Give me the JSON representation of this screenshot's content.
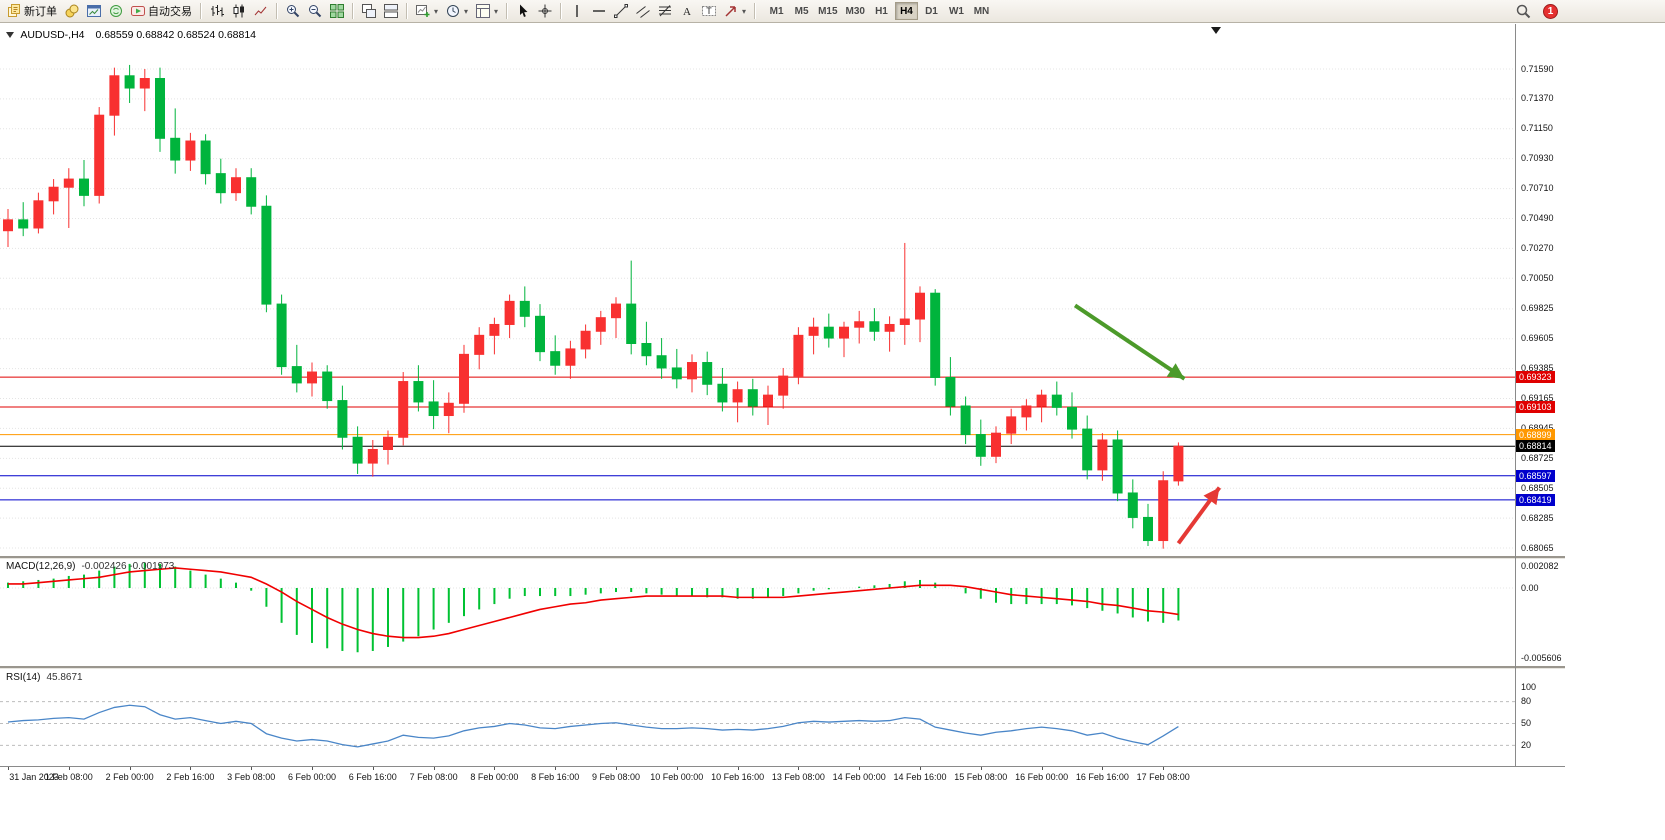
{
  "toolbar": {
    "items": [
      {
        "type": "button",
        "name": "new-order",
        "icon": "new-order-icon",
        "label": "新订单"
      },
      {
        "type": "button",
        "name": "market-watch",
        "icon": "market-watch-icon"
      },
      {
        "type": "button",
        "name": "terminal-window",
        "icon": "terminal-window-icon"
      },
      {
        "type": "button",
        "name": "mql5-community",
        "icon": "mql5-community-icon"
      },
      {
        "type": "button",
        "name": "auto-trading",
        "icon": "auto-trading-icon",
        "label": "自动交易"
      },
      {
        "type": "sep"
      },
      {
        "type": "button",
        "name": "bar-chart-mode",
        "icon": "bar-chart-icon"
      },
      {
        "type": "button",
        "name": "candlestick-mode",
        "icon": "candlestick-icon"
      },
      {
        "type": "button",
        "name": "line-chart-mode",
        "icon": "line-chart-icon"
      },
      {
        "type": "sep"
      },
      {
        "type": "button",
        "name": "zoom-in",
        "icon": "zoom-in-icon"
      },
      {
        "type": "button",
        "name": "zoom-out",
        "icon": "zoom-out-icon"
      },
      {
        "type": "button",
        "name": "tile-windows",
        "icon": "tile-windows-icon"
      },
      {
        "type": "sep"
      },
      {
        "type": "button",
        "name": "cascade-windows",
        "icon": "cascade-windows-icon"
      },
      {
        "type": "button",
        "name": "tile-horizontal",
        "icon": "tile-horizontal-icon"
      },
      {
        "type": "sep"
      },
      {
        "type": "button",
        "name": "new-chart",
        "icon": "new-chart-icon",
        "dropdown": true
      },
      {
        "type": "button",
        "name": "periods",
        "icon": "periods-icon",
        "dropdown": true
      },
      {
        "type": "button",
        "name": "templates",
        "icon": "templates-icon",
        "dropdown": true
      },
      {
        "type": "sep"
      },
      {
        "type": "button",
        "name": "cursor-tool",
        "icon": "cursor-icon"
      },
      {
        "type": "button",
        "name": "crosshair-tool",
        "icon": "crosshair-icon"
      },
      {
        "type": "sep"
      },
      {
        "type": "button",
        "name": "vertical-line-tool",
        "icon": "vertical-line-icon"
      },
      {
        "type": "button",
        "name": "horizontal-line-tool",
        "icon": "horizontal-line-icon"
      },
      {
        "type": "button",
        "name": "trendline-tool",
        "icon": "trendline-icon"
      },
      {
        "type": "button",
        "name": "channel-tool",
        "icon": "channel-icon"
      },
      {
        "type": "button",
        "name": "fibonacci-tool",
        "icon": "fibonacci-icon"
      },
      {
        "type": "button",
        "name": "text-tool",
        "icon": "text-icon"
      },
      {
        "type": "button",
        "name": "label-tool",
        "icon": "label-icon"
      },
      {
        "type": "button",
        "name": "arrows-tool",
        "icon": "arrows-icon",
        "dropdown": true
      },
      {
        "type": "sep"
      }
    ],
    "timeframes": {
      "labels": [
        "M1",
        "M5",
        "M15",
        "M30",
        "H1",
        "H4",
        "D1",
        "W1",
        "MN"
      ],
      "active": "H4"
    },
    "notification_count": "1"
  },
  "chart_data": [
    {
      "type": "candlestick",
      "symbol_title": "AUDUSD-,H4",
      "ohlc_display": "0.68559 0.68842 0.68524 0.68814",
      "current": {
        "open": 0.68559,
        "high": 0.68842,
        "low": 0.68524,
        "close": 0.68814
      },
      "up_color": "#f83030",
      "down_color": "#00b43c",
      "ylim": [
        0.6799,
        0.7192
      ],
      "y_ticks": [
        "0.71590",
        "0.71370",
        "0.71150",
        "0.70930",
        "0.70710",
        "0.70490",
        "0.70270",
        "0.70050",
        "0.69825",
        "0.69605",
        "0.69385",
        "0.69165",
        "0.68945",
        "0.68725",
        "0.68505",
        "0.68285",
        "0.68065"
      ],
      "x_label_step": 4,
      "x_labels": [
        "31 Jan 2023",
        "1 Feb 08:00",
        "2 Feb 00:00",
        "2 Feb 16:00",
        "3 Feb 08:00",
        "6 Feb 00:00",
        "6 Feb 16:00",
        "7 Feb 08:00",
        "8 Feb 00:00",
        "8 Feb 16:00",
        "9 Feb 08:00",
        "10 Feb 00:00",
        "10 Feb 16:00",
        "13 Feb 08:00",
        "14 Feb 00:00",
        "14 Feb 16:00",
        "15 Feb 08:00",
        "16 Feb 00:00",
        "16 Feb 16:00",
        "17 Feb 08:00"
      ],
      "candles": [
        [
          0.704,
          0.7056,
          0.7028,
          0.7048
        ],
        [
          0.7048,
          0.7061,
          0.7036,
          0.7042
        ],
        [
          0.7042,
          0.7068,
          0.7038,
          0.7062
        ],
        [
          0.7062,
          0.7078,
          0.7052,
          0.7072
        ],
        [
          0.7072,
          0.7086,
          0.7042,
          0.7078
        ],
        [
          0.7078,
          0.7092,
          0.7058,
          0.7066
        ],
        [
          0.7066,
          0.7131,
          0.706,
          0.7125
        ],
        [
          0.7125,
          0.716,
          0.711,
          0.7154
        ],
        [
          0.7154,
          0.7162,
          0.7134,
          0.7145
        ],
        [
          0.7145,
          0.7159,
          0.7128,
          0.7152
        ],
        [
          0.7152,
          0.716,
          0.7098,
          0.7108
        ],
        [
          0.7108,
          0.713,
          0.7082,
          0.7092
        ],
        [
          0.7092,
          0.7112,
          0.7084,
          0.7106
        ],
        [
          0.7106,
          0.7111,
          0.7074,
          0.7082
        ],
        [
          0.7082,
          0.7093,
          0.706,
          0.7068
        ],
        [
          0.7068,
          0.7086,
          0.7062,
          0.7079
        ],
        [
          0.7079,
          0.7086,
          0.7052,
          0.7058
        ],
        [
          0.7058,
          0.7066,
          0.698,
          0.6986
        ],
        [
          0.6986,
          0.6993,
          0.6934,
          0.694
        ],
        [
          0.694,
          0.6956,
          0.6921,
          0.6928
        ],
        [
          0.6928,
          0.6943,
          0.6918,
          0.6936
        ],
        [
          0.6936,
          0.6941,
          0.6909,
          0.6915
        ],
        [
          0.6915,
          0.6926,
          0.6879,
          0.6888
        ],
        [
          0.6888,
          0.6896,
          0.6861,
          0.6869
        ],
        [
          0.6869,
          0.6886,
          0.6859,
          0.6879
        ],
        [
          0.6879,
          0.6893,
          0.6868,
          0.6888
        ],
        [
          0.6888,
          0.6936,
          0.6882,
          0.6929
        ],
        [
          0.6929,
          0.6941,
          0.6907,
          0.6914
        ],
        [
          0.6914,
          0.693,
          0.6894,
          0.6904
        ],
        [
          0.6904,
          0.6921,
          0.6891,
          0.6913
        ],
        [
          0.6913,
          0.6956,
          0.6906,
          0.6949
        ],
        [
          0.6949,
          0.6969,
          0.6938,
          0.6963
        ],
        [
          0.6963,
          0.6976,
          0.6949,
          0.6971
        ],
        [
          0.6971,
          0.6993,
          0.6961,
          0.6988
        ],
        [
          0.6988,
          0.6999,
          0.6969,
          0.6977
        ],
        [
          0.6977,
          0.6986,
          0.6944,
          0.6951
        ],
        [
          0.6951,
          0.6963,
          0.6934,
          0.6941
        ],
        [
          0.6941,
          0.6959,
          0.6931,
          0.6953
        ],
        [
          0.6953,
          0.6971,
          0.6946,
          0.6966
        ],
        [
          0.6966,
          0.6981,
          0.6956,
          0.6976
        ],
        [
          0.6976,
          0.6991,
          0.6961,
          0.6986
        ],
        [
          0.6986,
          0.7018,
          0.6949,
          0.6957
        ],
        [
          0.6957,
          0.6973,
          0.6941,
          0.6948
        ],
        [
          0.6948,
          0.6961,
          0.6931,
          0.6939
        ],
        [
          0.6939,
          0.6953,
          0.6924,
          0.6931
        ],
        [
          0.6931,
          0.6949,
          0.6921,
          0.6943
        ],
        [
          0.6943,
          0.6951,
          0.6919,
          0.6927
        ],
        [
          0.6927,
          0.6939,
          0.6907,
          0.6914
        ],
        [
          0.6914,
          0.6929,
          0.6899,
          0.6923
        ],
        [
          0.6923,
          0.6931,
          0.6904,
          0.6911
        ],
        [
          0.6911,
          0.6926,
          0.6897,
          0.6919
        ],
        [
          0.6919,
          0.6939,
          0.6909,
          0.6933
        ],
        [
          0.6933,
          0.6969,
          0.6927,
          0.6963
        ],
        [
          0.6963,
          0.6976,
          0.6949,
          0.6969
        ],
        [
          0.6969,
          0.6979,
          0.6954,
          0.6961
        ],
        [
          0.6961,
          0.6973,
          0.6947,
          0.6969
        ],
        [
          0.6969,
          0.6981,
          0.6957,
          0.6973
        ],
        [
          0.6973,
          0.6983,
          0.6959,
          0.6966
        ],
        [
          0.6966,
          0.6977,
          0.6951,
          0.6971
        ],
        [
          0.6971,
          0.7031,
          0.6956,
          0.6975
        ],
        [
          0.6975,
          0.6999,
          0.6958,
          0.6994
        ],
        [
          0.6994,
          0.6997,
          0.6926,
          0.6932
        ],
        [
          0.6932,
          0.6947,
          0.6904,
          0.6911
        ],
        [
          0.6911,
          0.6918,
          0.6883,
          0.689
        ],
        [
          0.689,
          0.6901,
          0.6867,
          0.6874
        ],
        [
          0.6874,
          0.6896,
          0.6869,
          0.6891
        ],
        [
          0.6891,
          0.6909,
          0.6883,
          0.6903
        ],
        [
          0.6903,
          0.6916,
          0.6893,
          0.6911
        ],
        [
          0.6911,
          0.6923,
          0.6899,
          0.6919
        ],
        [
          0.6919,
          0.6929,
          0.6904,
          0.691
        ],
        [
          0.691,
          0.6921,
          0.6887,
          0.6894
        ],
        [
          0.6894,
          0.6904,
          0.6857,
          0.6864
        ],
        [
          0.6864,
          0.6891,
          0.6856,
          0.6886
        ],
        [
          0.6886,
          0.6893,
          0.6841,
          0.6847
        ],
        [
          0.6847,
          0.6857,
          0.6821,
          0.6829
        ],
        [
          0.6829,
          0.6839,
          0.6808,
          0.6812
        ],
        [
          0.6812,
          0.6863,
          0.6806,
          0.6856
        ],
        [
          0.68559,
          0.68842,
          0.68524,
          0.68814
        ]
      ],
      "hlines": [
        {
          "price": 0.69323,
          "color": "#e00000",
          "label": "0.69323"
        },
        {
          "price": 0.69103,
          "color": "#e00000",
          "label": "0.69103"
        },
        {
          "price": 0.68899,
          "color": "#ff9800",
          "label": "0.68899"
        },
        {
          "price": 0.68814,
          "color": "#000000",
          "label": "0.68814",
          "role": "current-price"
        },
        {
          "price": 0.68597,
          "color": "#0000cc",
          "label": "0.68597"
        },
        {
          "price": 0.68419,
          "color": "#0000cc",
          "label": "0.68419"
        }
      ],
      "arrows": [
        {
          "name": "trend-down-arrow",
          "color": "#4c9a2a",
          "from": {
            "bar": 70.2,
            "price": 0.6985
          },
          "to": {
            "bar": 77.4,
            "price": 0.6931
          }
        },
        {
          "name": "reversal-up-arrow",
          "color": "#e53935",
          "from": {
            "bar": 77.0,
            "price": 0.681
          },
          "to": {
            "bar": 79.7,
            "price": 0.6851
          }
        }
      ]
    },
    {
      "type": "bar",
      "name": "MACD",
      "label": "MACD(12,26,9)",
      "values_display": "-0.002426 -0.001973",
      "hist_color": "#00c232",
      "signal_color": "#f00000",
      "ylim": [
        -0.005606,
        0.002082
      ],
      "y_ticks": [
        {
          "value": 0.002082,
          "label": "0.002082"
        },
        {
          "value": 0,
          "label": "0.00"
        },
        {
          "value": -0.005606,
          "label": "-0.005606"
        }
      ],
      "histogram": [
        0.0004,
        0.0005,
        0.0006,
        0.0007,
        0.0009,
        0.001,
        0.0013,
        0.0016,
        0.0018,
        0.0019,
        0.0018,
        0.0016,
        0.0013,
        0.001,
        0.0007,
        0.0004,
        -0.0002,
        -0.0014,
        -0.0026,
        -0.0035,
        -0.0041,
        -0.0045,
        -0.0047,
        -0.0048,
        -0.0047,
        -0.0044,
        -0.004,
        -0.0036,
        -0.0031,
        -0.0026,
        -0.0021,
        -0.0016,
        -0.0012,
        -0.0008,
        -0.0006,
        -0.0006,
        -0.0006,
        -0.0006,
        -0.0005,
        -0.0004,
        -0.0003,
        -0.0003,
        -0.0004,
        -0.0005,
        -0.0006,
        -0.0006,
        -0.0007,
        -0.0007,
        -0.0008,
        -0.0008,
        -0.0007,
        -0.0006,
        -0.0004,
        -0.0002,
        -0.0001,
        0.0,
        0.0001,
        0.0002,
        0.0003,
        0.0005,
        0.0006,
        0.0004,
        0.0,
        -0.0004,
        -0.0008,
        -0.0011,
        -0.0012,
        -0.0012,
        -0.0012,
        -0.0012,
        -0.0013,
        -0.0015,
        -0.0017,
        -0.0019,
        -0.0022,
        -0.0025,
        -0.0026,
        -0.002426
      ],
      "signal": [
        0.0003,
        0.0003,
        0.0004,
        0.0005,
        0.0006,
        0.0007,
        0.0008,
        0.001,
        0.0012,
        0.0013,
        0.0014,
        0.0015,
        0.0014,
        0.0013,
        0.0012,
        0.001,
        0.0008,
        0.0003,
        -0.0003,
        -0.001,
        -0.0016,
        -0.0022,
        -0.0027,
        -0.0031,
        -0.0034,
        -0.0036,
        -0.0037,
        -0.0037,
        -0.0036,
        -0.0034,
        -0.0031,
        -0.0028,
        -0.0025,
        -0.0022,
        -0.0019,
        -0.0016,
        -0.0014,
        -0.0012,
        -0.0011,
        -0.0009,
        -0.0008,
        -0.0007,
        -0.0006,
        -0.0006,
        -0.0006,
        -0.0006,
        -0.0006,
        -0.0006,
        -0.0007,
        -0.0007,
        -0.0007,
        -0.0007,
        -0.0006,
        -0.0005,
        -0.0004,
        -0.0003,
        -0.0002,
        -0.0001,
        0.0,
        0.0001,
        0.0002,
        0.0002,
        0.0002,
        0.0001,
        -0.0001,
        -0.0003,
        -0.0005,
        -0.0006,
        -0.0007,
        -0.0008,
        -0.0009,
        -0.001,
        -0.0012,
        -0.0013,
        -0.0015,
        -0.0017,
        -0.0018,
        -0.001973
      ]
    },
    {
      "type": "line",
      "name": "RSI",
      "label": "RSI(14)",
      "value_display": "45.8671",
      "line_color": "#4a86c8",
      "ylim": [
        0,
        100
      ],
      "levels": [
        80,
        50,
        20
      ],
      "y_ticks": [
        {
          "value": 100,
          "label": "100"
        },
        {
          "value": 80,
          "label": "80"
        },
        {
          "value": 50,
          "label": "50"
        },
        {
          "value": 20,
          "label": "20"
        }
      ],
      "values": [
        52,
        54,
        55,
        57,
        58,
        56,
        65,
        72,
        75,
        73,
        62,
        56,
        58,
        54,
        50,
        53,
        50,
        36,
        30,
        26,
        28,
        26,
        21,
        18,
        22,
        26,
        34,
        31,
        30,
        33,
        40,
        44,
        46,
        50,
        48,
        44,
        43,
        46,
        48,
        50,
        51,
        48,
        45,
        43,
        43,
        44,
        43,
        41,
        42,
        41,
        43,
        46,
        51,
        53,
        52,
        53,
        54,
        53,
        54,
        58,
        56,
        45,
        41,
        37,
        34,
        38,
        40,
        43,
        45,
        43,
        40,
        34,
        37,
        30,
        25,
        21,
        33,
        45.8671
      ]
    }
  ]
}
